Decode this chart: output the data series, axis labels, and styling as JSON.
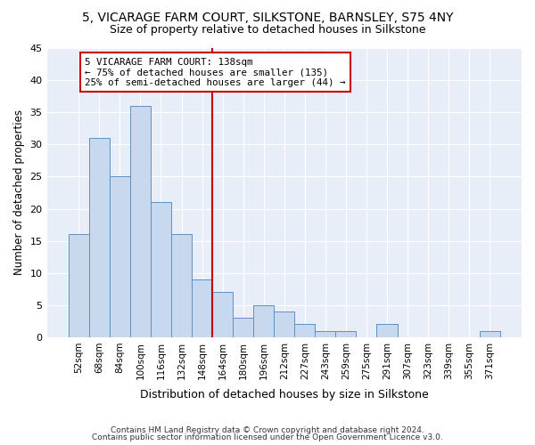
{
  "title1": "5, VICARAGE FARM COURT, SILKSTONE, BARNSLEY, S75 4NY",
  "title2": "Size of property relative to detached houses in Silkstone",
  "xlabel": "Distribution of detached houses by size in Silkstone",
  "ylabel": "Number of detached properties",
  "categories": [
    "52sqm",
    "68sqm",
    "84sqm",
    "100sqm",
    "116sqm",
    "132sqm",
    "148sqm",
    "164sqm",
    "180sqm",
    "196sqm",
    "212sqm",
    "227sqm",
    "243sqm",
    "259sqm",
    "275sqm",
    "291sqm",
    "307sqm",
    "323sqm",
    "339sqm",
    "355sqm",
    "371sqm"
  ],
  "values": [
    16,
    31,
    25,
    36,
    21,
    16,
    9,
    7,
    3,
    5,
    4,
    2,
    1,
    1,
    0,
    2,
    0,
    0,
    0,
    0,
    1
  ],
  "bar_color": "#c8d8ee",
  "bar_edge_color": "#6090c0",
  "vline_x": 6.5,
  "vline_color": "#cc0000",
  "annotation_text": "5 VICARAGE FARM COURT: 138sqm\n← 75% of detached houses are smaller (135)\n25% of semi-detached houses are larger (44) →",
  "annotation_box_color": "#ffffff",
  "annotation_box_edge": "#cc0000",
  "ylim": [
    0,
    45
  ],
  "yticks": [
    0,
    5,
    10,
    15,
    20,
    25,
    30,
    35,
    40,
    45
  ],
  "footer1": "Contains HM Land Registry data © Crown copyright and database right 2024.",
  "footer2": "Contains public sector information licensed under the Open Government Licence v3.0.",
  "bg_color": "#ffffff",
  "plot_bg_color": "#e8eef8",
  "title1_fontsize": 10,
  "title2_fontsize": 9
}
